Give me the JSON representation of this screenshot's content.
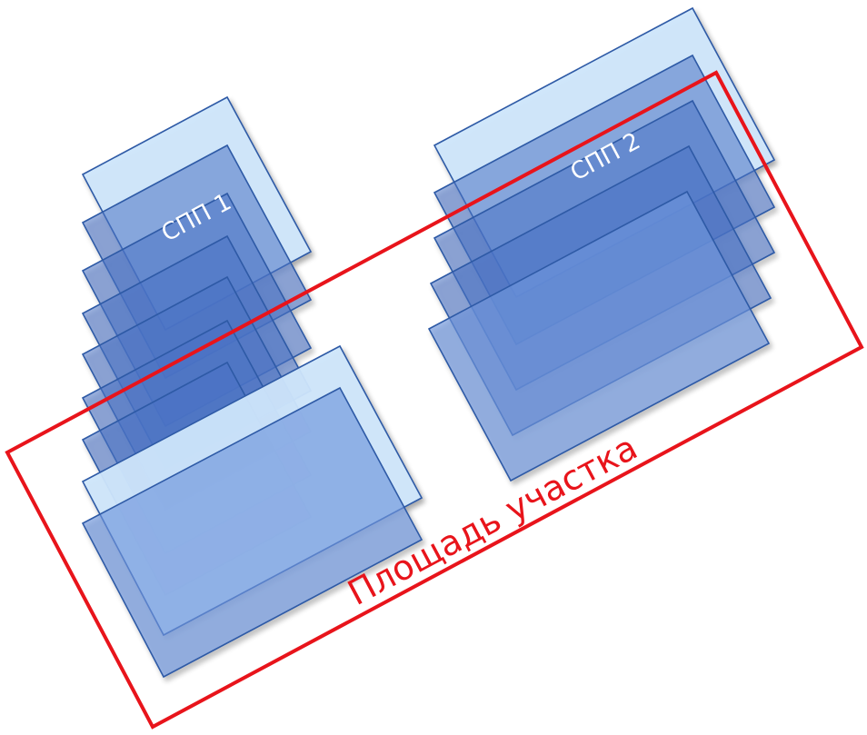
{
  "diagram": {
    "site_label": "Площадь участка",
    "group1_label": "СПП 1",
    "group2_label": "СПП 2"
  },
  "colors": {
    "site_outline": "#e8141b",
    "sheet_stroke": "#2e5aa6",
    "sheet_light": "#cfe6fb",
    "sheet_mid": "#6f95db",
    "sheet_dark": "#4a72c4",
    "label_light": "#ffffff"
  },
  "groups": [
    {
      "name": "СПП 1",
      "sheet_count": 9
    },
    {
      "name": "СПП 2",
      "sheet_count": 6
    }
  ]
}
